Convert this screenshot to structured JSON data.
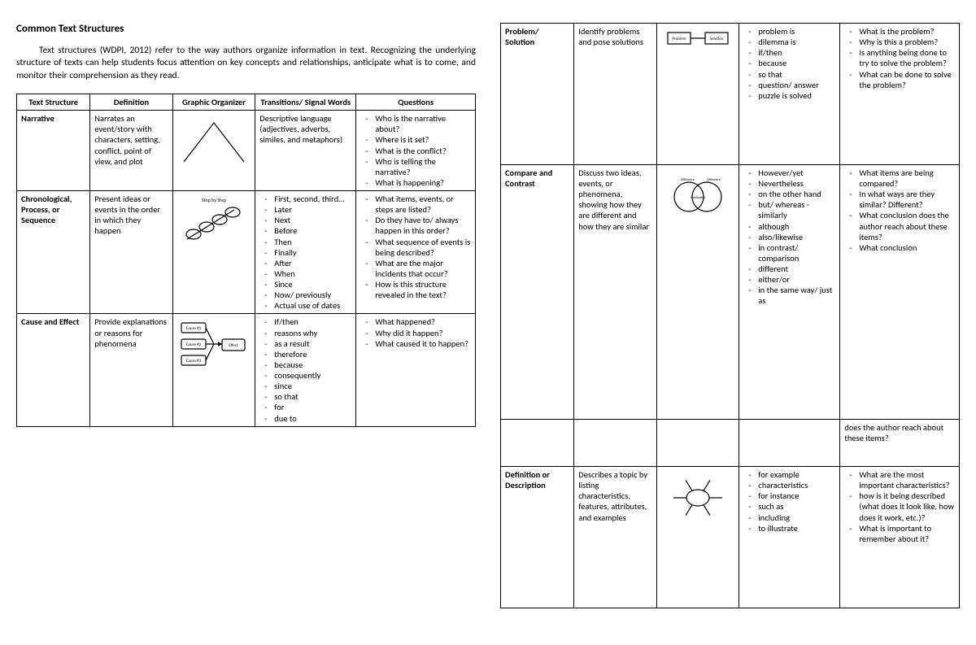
{
  "title": "Common Text Structures",
  "intro": "Text structures (WDPI, 2012) refer to the way authors organize information in text. Recognizing the underlying structure of texts can help students focus attention on key concepts and relationships, anticipate what is to come, and monitor their comprehension as they read.",
  "headers": [
    "Text Structure",
    "Definition",
    "Graphic Organizer",
    "Transitions/ Signal Words",
    "Questions"
  ],
  "column_widths_pct": [
    16,
    18,
    18,
    22,
    26
  ],
  "left_rows": [
    {
      "name": "Narrative",
      "definition": "Narrates an event/story with characters, setting, conflict, point of view, and plot",
      "organizer": "plot-arc",
      "transitions": "Descriptive language (adjectives, adverbs, similes, and metaphors)",
      "questions": [
        "Who is the narrative about?",
        "Where is it set?",
        "What is the conflict?",
        "Who is telling the narrative?",
        "What is happening?"
      ]
    },
    {
      "name": "Chronological, Process, or Sequence",
      "definition": "Present ideas or events in the order in which they happen",
      "organizer": "step-chain",
      "transitions_list": [
        "First, second, third…",
        "Later",
        "Next",
        "Before",
        "Then",
        "Finally",
        "After",
        "When",
        "Since",
        "Now/ previously",
        "Actual use of dates"
      ],
      "questions": [
        "What items, events, or steps are listed?",
        "Do they have to/ always happen in this order?",
        "What sequence of events is being described?",
        "What are the major incidents that occur?",
        "How is this structure revealed in the text?"
      ]
    },
    {
      "name": "Cause and Effect",
      "definition": "Provide explanations or reasons for phenomena",
      "organizer": "cause-effect",
      "transitions_list": [
        "If/then",
        "reasons why",
        "as a result",
        "therefore",
        "because",
        "consequently",
        "since",
        "so that",
        "for",
        "due to"
      ],
      "questions": [
        "What happened?",
        "Why did it happen?",
        "What caused it to happen?"
      ]
    }
  ],
  "right_rows": [
    {
      "name": "Problem/ Solution",
      "definition": "Identify problems and pose solutions",
      "organizer": "problem-solution",
      "transitions_list": [
        "problem is",
        "dilemma is",
        "if/then",
        "because",
        "so that",
        "question/ answer",
        "puzzle is solved"
      ],
      "questions": [
        "What is the problem?",
        "Why is this a problem?",
        "Is anything being done to try to solve the problem?",
        "What can be done to solve the problem?"
      ]
    },
    {
      "name": "Compare and Contrast",
      "definition": "Discuss two ideas, events, or phenomena, showing how they are different and how they are similar",
      "organizer": "venn",
      "transitions_list": [
        "However/yet",
        "Nevertheless",
        "on the other hand",
        "but/ whereas - similarly",
        "although",
        "also/likewise",
        "in contrast/ comparison",
        "different",
        "either/or",
        "in the same way/ just as"
      ],
      "questions": [
        "What items are being compared?",
        "In what ways are they similar? Different?",
        "What conclusion does the author reach about these items?",
        "What conclusion"
      ]
    },
    {
      "name": "",
      "definition": "",
      "organizer": "none",
      "transitions": "",
      "questions_plain": "does the author reach about these items?"
    },
    {
      "name": "Definition or Description",
      "definition": "Describes a topic by listing characteristics, features, attributes, and examples",
      "organizer": "concept-web",
      "transitions_list": [
        "for example",
        "characteristics",
        "for instance",
        "such as",
        "including",
        "to illustrate"
      ],
      "questions": [
        "What are the most important characteristics?",
        "how is it being described (what does it look like, how does it work, etc.)?",
        "What is important to remember about it?"
      ]
    }
  ]
}
